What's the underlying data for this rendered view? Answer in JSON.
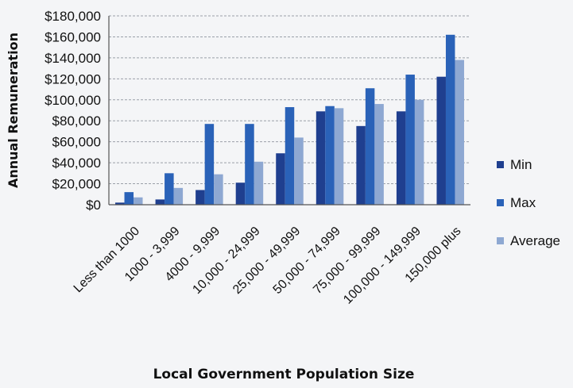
{
  "chart_data": {
    "type": "bar",
    "title": "",
    "xlabel": "Local Government Population Size",
    "ylabel": "Annual Remuneration",
    "categories": [
      "Less than 1000",
      "1000 - 3,999",
      "4000 - 9,999",
      "10,000 - 24,999",
      "25,000 - 49,999",
      "50,000 - 74,999",
      "75,000 - 99,999",
      "100,000 - 149,999",
      "150,000 plus"
    ],
    "series": [
      {
        "name": "Min",
        "color": "#1f3f8f",
        "values": [
          2000,
          5000,
          14000,
          21000,
          49000,
          89000,
          75000,
          89000,
          122000
        ]
      },
      {
        "name": "Max",
        "color": "#2a62b8",
        "values": [
          12000,
          30000,
          77000,
          77000,
          93000,
          94000,
          111000,
          124000,
          162000
        ]
      },
      {
        "name": "Average",
        "color": "#8ea8d2",
        "values": [
          7000,
          16000,
          29000,
          41000,
          64000,
          92000,
          96000,
          100000,
          138000
        ]
      }
    ],
    "yticks": [
      "$0",
      "$20,000",
      "$40,000",
      "$60,000",
      "$80,000",
      "$100,000",
      "$120,000",
      "$140,000",
      "$160,000",
      "$180,000"
    ],
    "ytick_values": [
      0,
      20000,
      40000,
      60000,
      80000,
      100000,
      120000,
      140000,
      160000,
      180000
    ],
    "ylim": [
      0,
      180000
    ],
    "grid": true,
    "legend_position": "right"
  }
}
